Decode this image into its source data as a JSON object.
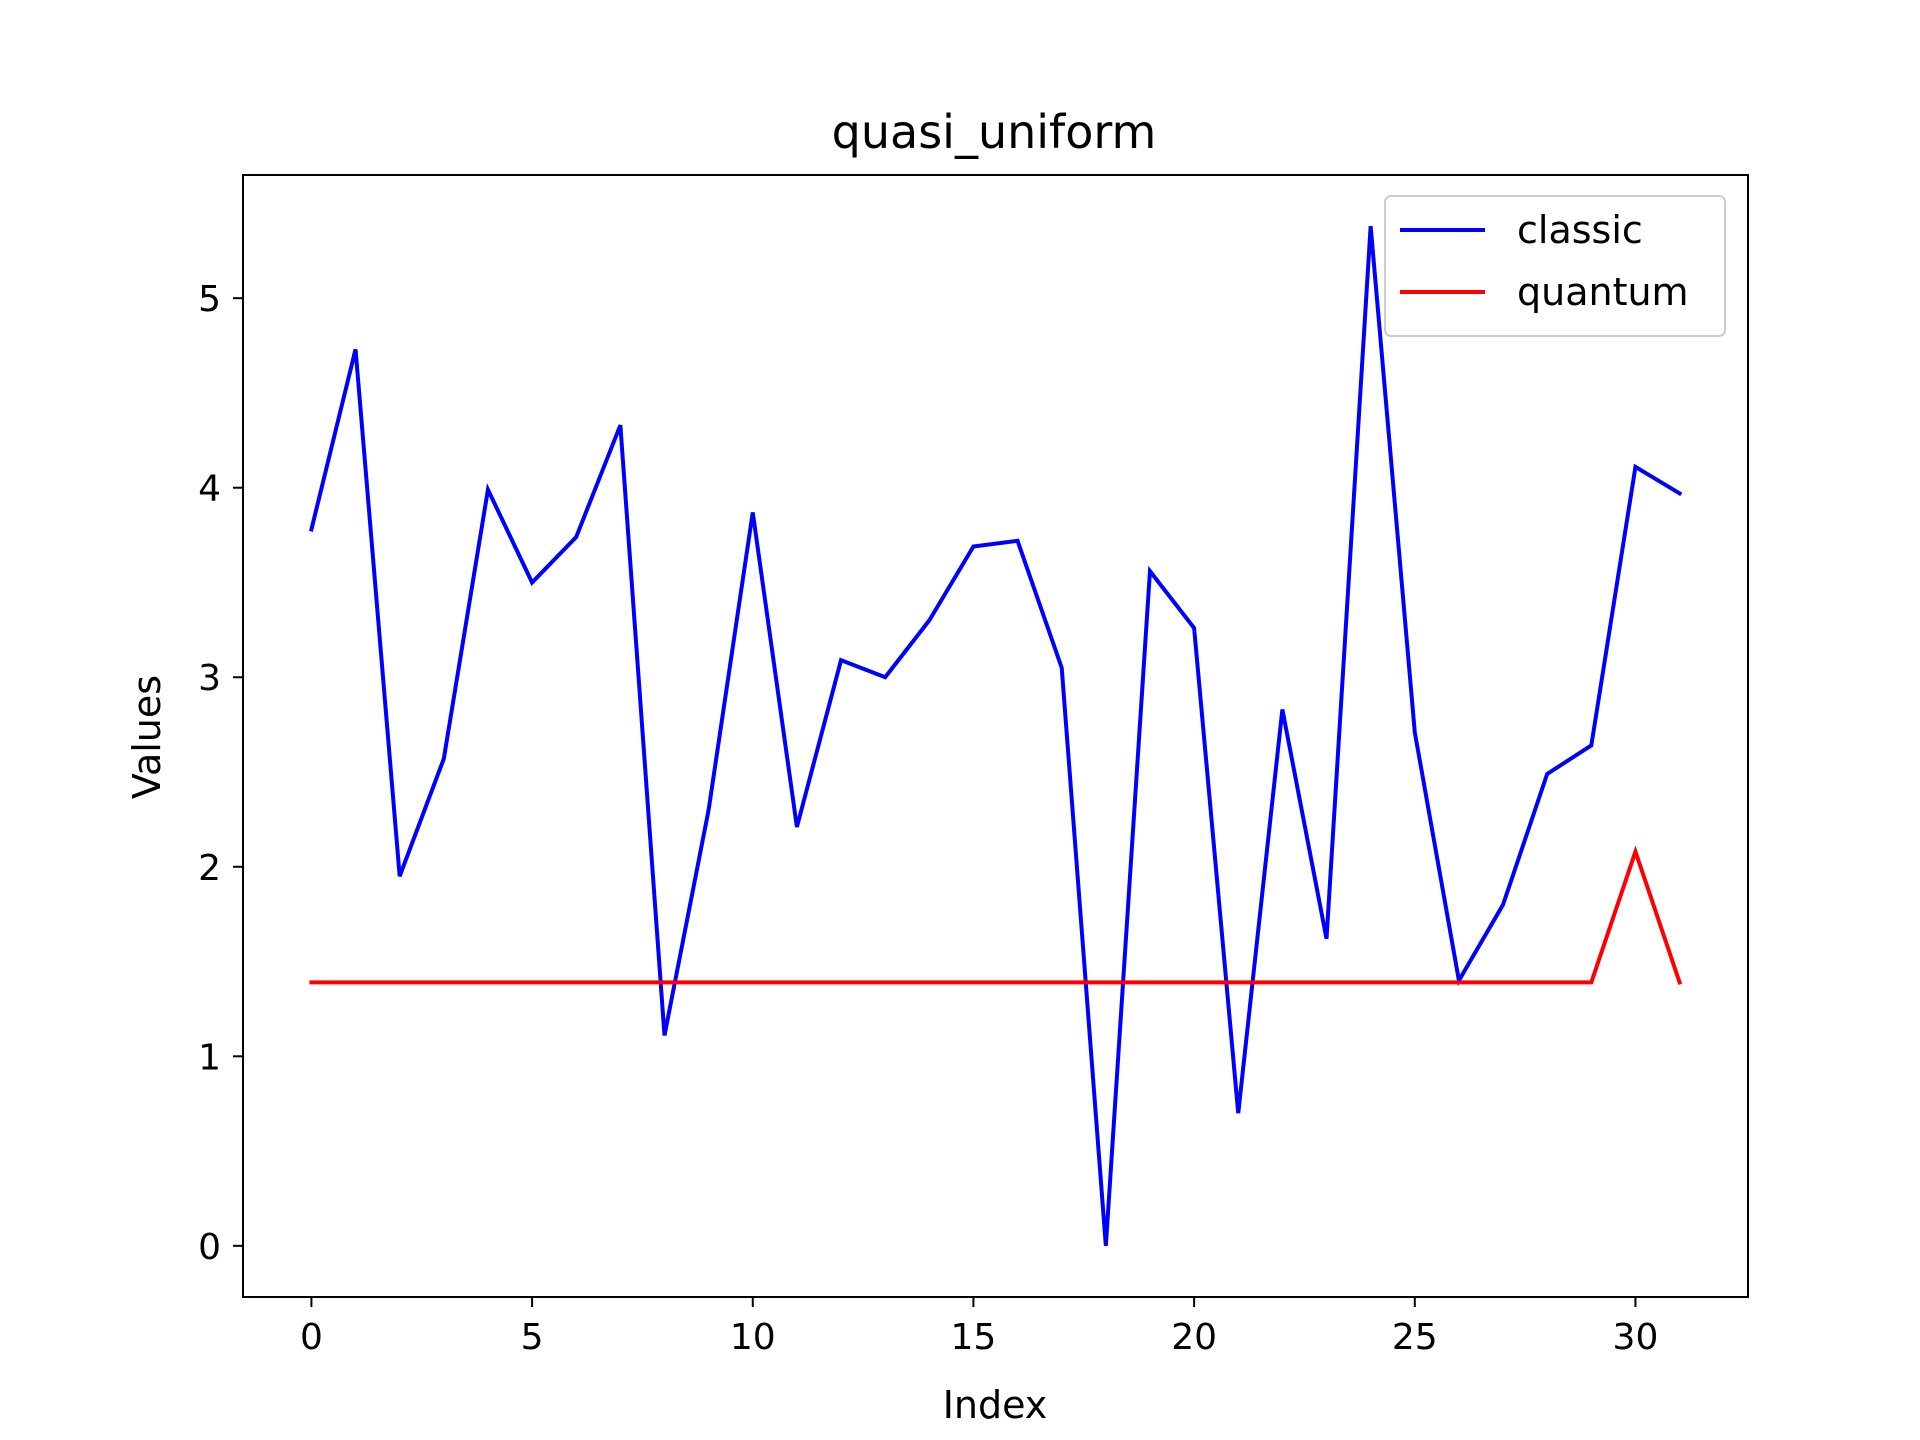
{
  "chart_data": {
    "type": "line",
    "title": "quasi_uniform",
    "xlabel": "Index",
    "ylabel": "Values",
    "xlim": [
      -1.55,
      32.55
    ],
    "ylim": [
      -0.27,
      5.65
    ],
    "xticks": [
      0,
      5,
      10,
      15,
      20,
      25,
      30
    ],
    "yticks": [
      0,
      1,
      2,
      3,
      4,
      5
    ],
    "grid": false,
    "legend_position": "top-right",
    "x": [
      0,
      1,
      2,
      3,
      4,
      5,
      6,
      7,
      8,
      9,
      10,
      11,
      12,
      13,
      14,
      15,
      16,
      17,
      18,
      19,
      20,
      21,
      22,
      23,
      24,
      25,
      26,
      27,
      28,
      29,
      30,
      31
    ],
    "series": [
      {
        "name": "classic",
        "color": "#0000ff",
        "values": [
          3.78,
          4.73,
          1.95,
          2.57,
          3.99,
          3.5,
          3.74,
          4.33,
          1.11,
          2.3,
          3.87,
          2.21,
          3.09,
          3.0,
          3.3,
          3.69,
          3.72,
          3.05,
          0.0,
          3.56,
          3.26,
          0.7,
          2.83,
          1.62,
          5.38,
          2.71,
          1.4,
          1.8,
          2.49,
          2.64,
          4.11,
          3.97
        ]
      },
      {
        "name": "quantum",
        "color": "#ff0000",
        "values": [
          1.39,
          1.39,
          1.39,
          1.39,
          1.39,
          1.39,
          1.39,
          1.39,
          1.39,
          1.39,
          1.39,
          1.39,
          1.39,
          1.39,
          1.39,
          1.39,
          1.39,
          1.39,
          1.39,
          1.39,
          1.39,
          1.39,
          1.39,
          1.39,
          1.39,
          1.39,
          1.39,
          1.39,
          1.39,
          1.39,
          2.08,
          1.39
        ]
      }
    ]
  }
}
